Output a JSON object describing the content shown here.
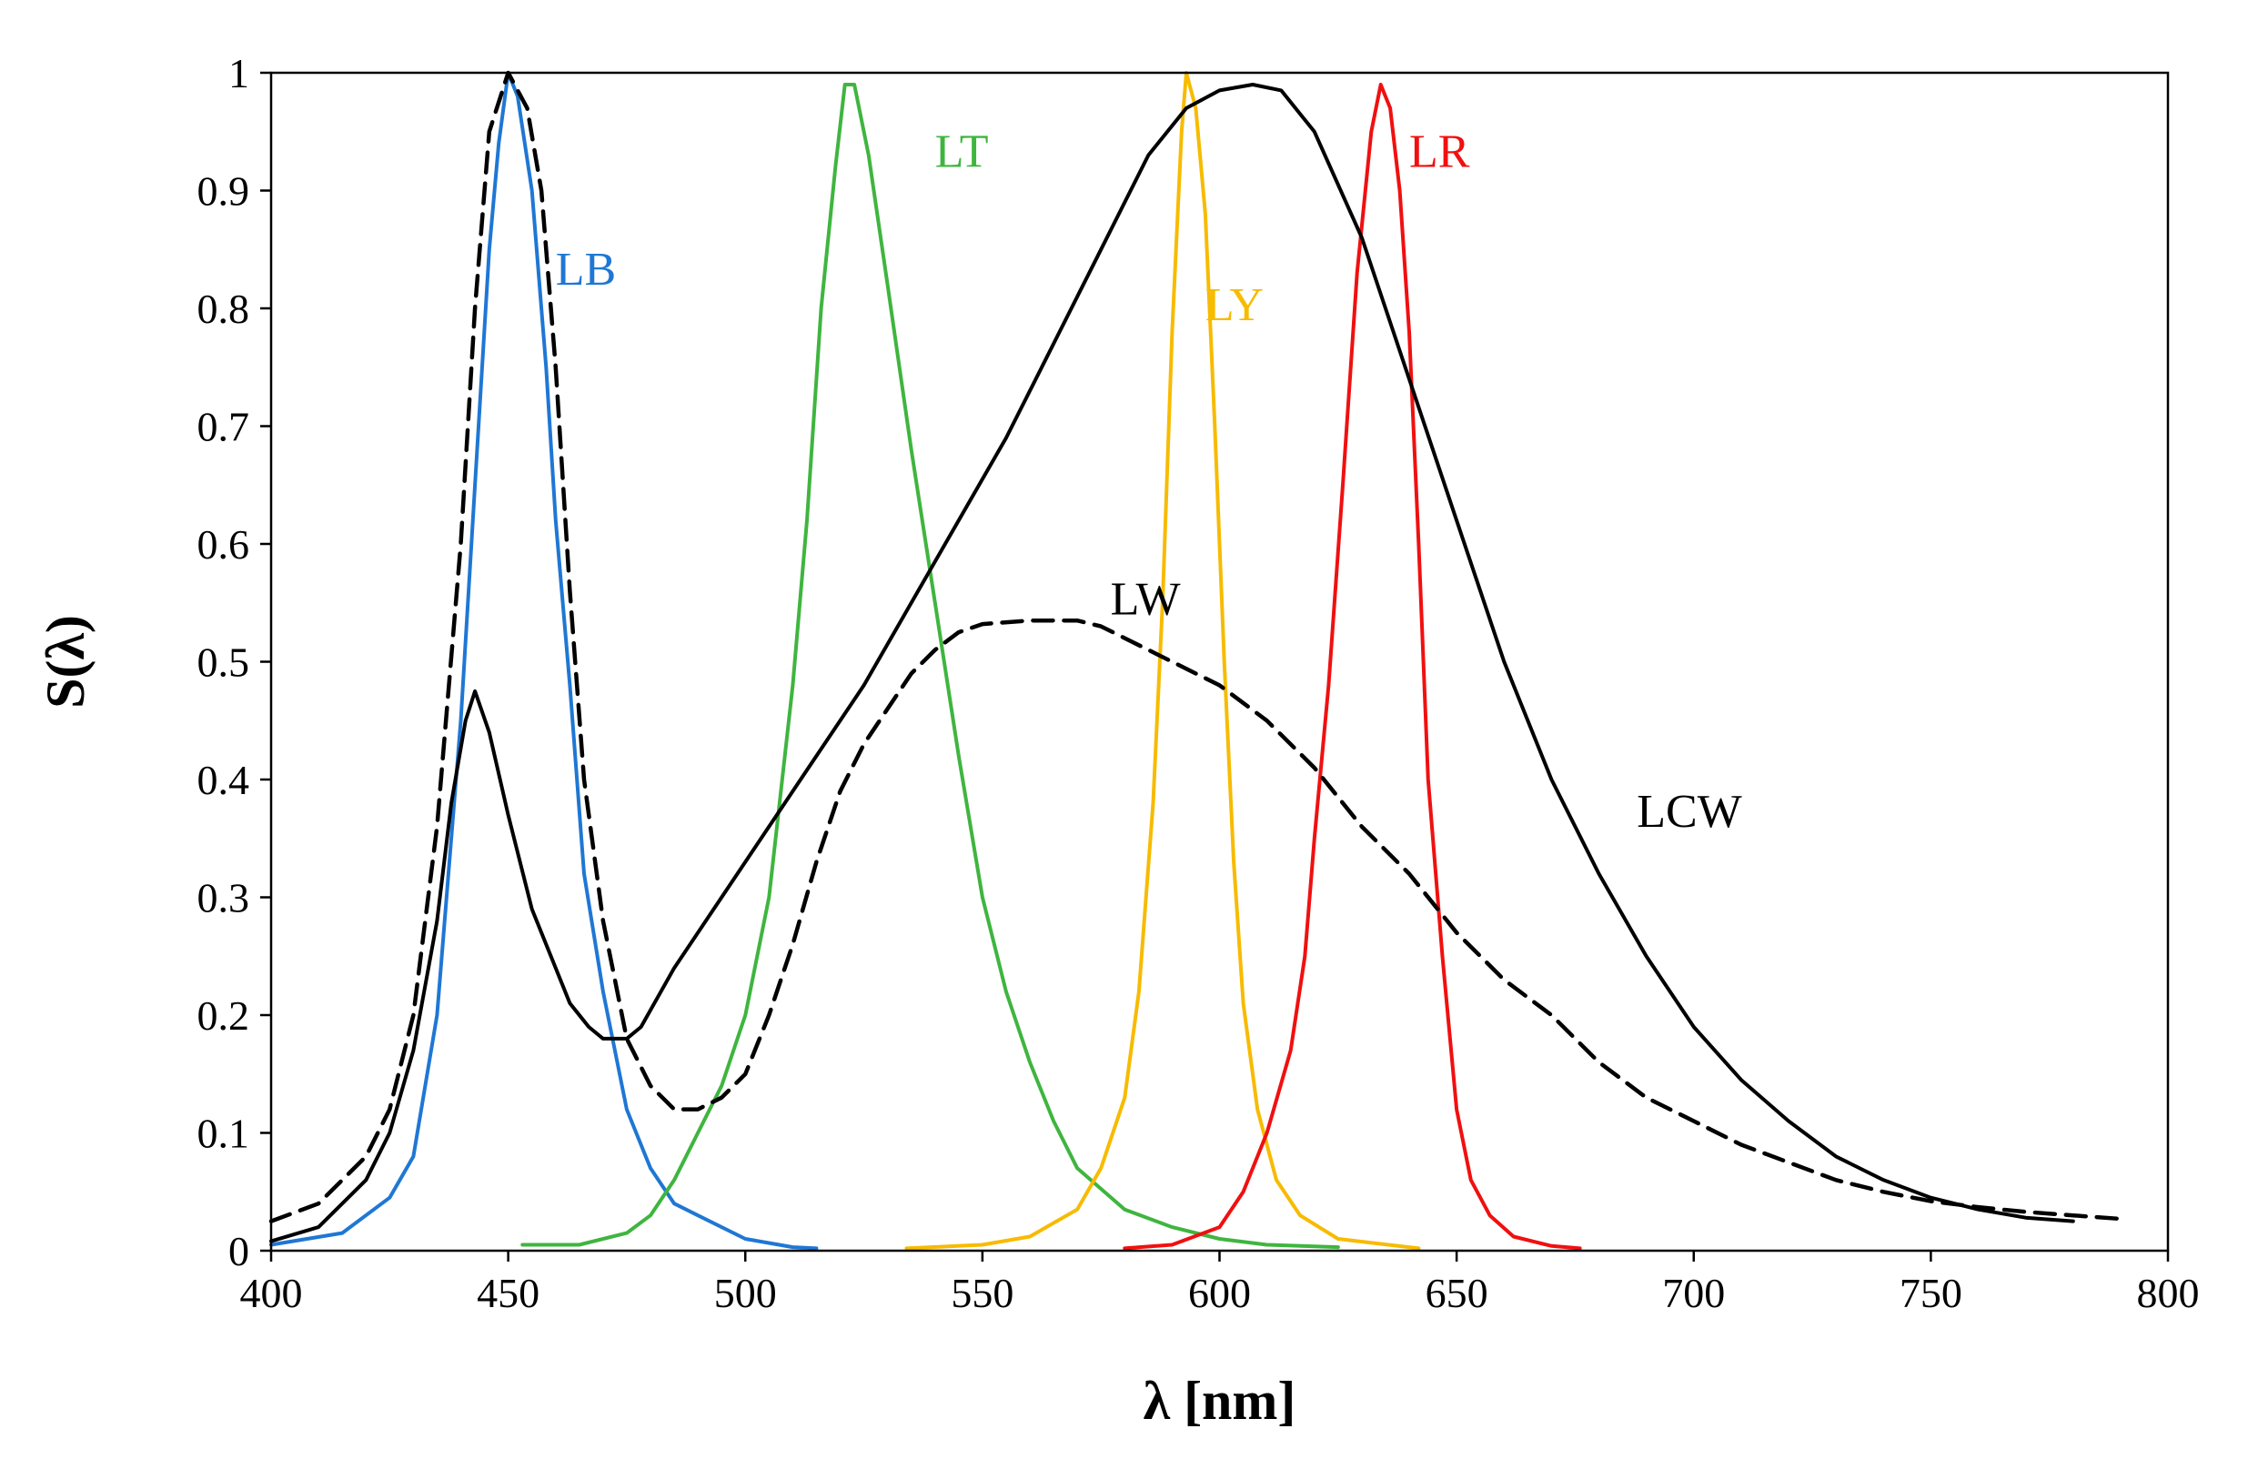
{
  "chart_data": {
    "type": "line",
    "title": "",
    "xlabel": "λ [nm]",
    "ylabel": "S(λ)",
    "xlim": [
      400,
      800
    ],
    "ylim": [
      0,
      1
    ],
    "xticks": [
      "400",
      "450",
      "500",
      "550",
      "600",
      "650",
      "700",
      "750",
      "800"
    ],
    "yticks": [
      "0",
      "0.1",
      "0.2",
      "0.3",
      "0.4",
      "0.5",
      "0.6",
      "0.7",
      "0.8",
      "0.9",
      "1"
    ],
    "grid": false,
    "series": [
      {
        "name": "LB",
        "label": "LB",
        "color": "#1f77d4",
        "dash": "solid",
        "label_at": [
          460,
          0.82
        ],
        "points": [
          [
            400,
            0.005
          ],
          [
            415,
            0.015
          ],
          [
            425,
            0.045
          ],
          [
            430,
            0.08
          ],
          [
            435,
            0.2
          ],
          [
            440,
            0.45
          ],
          [
            443,
            0.65
          ],
          [
            446,
            0.85
          ],
          [
            448,
            0.94
          ],
          [
            450,
            1.0
          ],
          [
            452,
            0.98
          ],
          [
            455,
            0.9
          ],
          [
            458,
            0.75
          ],
          [
            460,
            0.62
          ],
          [
            463,
            0.48
          ],
          [
            466,
            0.32
          ],
          [
            470,
            0.22
          ],
          [
            475,
            0.12
          ],
          [
            480,
            0.07
          ],
          [
            485,
            0.04
          ],
          [
            490,
            0.03
          ],
          [
            500,
            0.01
          ],
          [
            510,
            0.003
          ],
          [
            515,
            0.002
          ]
        ]
      },
      {
        "name": "LT",
        "label": "LT",
        "color": "#3fb53f",
        "dash": "solid",
        "label_at": [
          540,
          0.92
        ],
        "points": [
          [
            453,
            0.005
          ],
          [
            465,
            0.005
          ],
          [
            475,
            0.015
          ],
          [
            480,
            0.03
          ],
          [
            485,
            0.06
          ],
          [
            490,
            0.1
          ],
          [
            495,
            0.14
          ],
          [
            500,
            0.2
          ],
          [
            505,
            0.3
          ],
          [
            510,
            0.48
          ],
          [
            513,
            0.62
          ],
          [
            516,
            0.8
          ],
          [
            519,
            0.92
          ],
          [
            521,
            0.99
          ],
          [
            523,
            0.99
          ],
          [
            526,
            0.93
          ],
          [
            530,
            0.82
          ],
          [
            535,
            0.68
          ],
          [
            540,
            0.55
          ],
          [
            545,
            0.42
          ],
          [
            550,
            0.3
          ],
          [
            555,
            0.22
          ],
          [
            560,
            0.16
          ],
          [
            565,
            0.11
          ],
          [
            570,
            0.07
          ],
          [
            580,
            0.035
          ],
          [
            590,
            0.02
          ],
          [
            600,
            0.01
          ],
          [
            610,
            0.005
          ],
          [
            625,
            0.003
          ]
        ]
      },
      {
        "name": "LY",
        "label": "LY",
        "color": "#f7bb00",
        "dash": "solid",
        "label_at": [
          597,
          0.79
        ],
        "points": [
          [
            534,
            0.002
          ],
          [
            550,
            0.005
          ],
          [
            560,
            0.012
          ],
          [
            570,
            0.035
          ],
          [
            575,
            0.07
          ],
          [
            580,
            0.13
          ],
          [
            583,
            0.22
          ],
          [
            586,
            0.38
          ],
          [
            588,
            0.55
          ],
          [
            590,
            0.78
          ],
          [
            592,
            0.95
          ],
          [
            593,
            1.0
          ],
          [
            595,
            0.97
          ],
          [
            597,
            0.88
          ],
          [
            599,
            0.7
          ],
          [
            601,
            0.5
          ],
          [
            603,
            0.33
          ],
          [
            605,
            0.21
          ],
          [
            608,
            0.12
          ],
          [
            612,
            0.06
          ],
          [
            617,
            0.03
          ],
          [
            625,
            0.01
          ],
          [
            642,
            0.002
          ]
        ]
      },
      {
        "name": "LR",
        "label": "LR",
        "color": "#f01010",
        "dash": "solid",
        "label_at": [
          640,
          0.92
        ],
        "points": [
          [
            580,
            0.002
          ],
          [
            590,
            0.005
          ],
          [
            600,
            0.02
          ],
          [
            605,
            0.05
          ],
          [
            610,
            0.1
          ],
          [
            615,
            0.17
          ],
          [
            618,
            0.25
          ],
          [
            620,
            0.35
          ],
          [
            623,
            0.48
          ],
          [
            626,
            0.65
          ],
          [
            629,
            0.83
          ],
          [
            632,
            0.95
          ],
          [
            634,
            0.99
          ],
          [
            636,
            0.97
          ],
          [
            638,
            0.9
          ],
          [
            640,
            0.78
          ],
          [
            642,
            0.6
          ],
          [
            644,
            0.4
          ],
          [
            647,
            0.25
          ],
          [
            650,
            0.12
          ],
          [
            653,
            0.06
          ],
          [
            657,
            0.03
          ],
          [
            662,
            0.012
          ],
          [
            670,
            0.004
          ],
          [
            676,
            0.002
          ]
        ]
      },
      {
        "name": "LCW",
        "label": "LCW",
        "color": "#000000",
        "dash": "solid",
        "label_at": [
          688,
          0.36
        ],
        "points": [
          [
            400,
            0.008
          ],
          [
            410,
            0.02
          ],
          [
            420,
            0.06
          ],
          [
            425,
            0.1
          ],
          [
            430,
            0.17
          ],
          [
            435,
            0.28
          ],
          [
            438,
            0.38
          ],
          [
            441,
            0.45
          ],
          [
            443,
            0.475
          ],
          [
            446,
            0.44
          ],
          [
            450,
            0.37
          ],
          [
            455,
            0.29
          ],
          [
            460,
            0.24
          ],
          [
            463,
            0.21
          ],
          [
            467,
            0.19
          ],
          [
            470,
            0.18
          ],
          [
            475,
            0.18
          ],
          [
            478,
            0.19
          ],
          [
            485,
            0.24
          ],
          [
            495,
            0.3
          ],
          [
            505,
            0.36
          ],
          [
            515,
            0.42
          ],
          [
            525,
            0.48
          ],
          [
            535,
            0.55
          ],
          [
            545,
            0.62
          ],
          [
            555,
            0.69
          ],
          [
            565,
            0.77
          ],
          [
            575,
            0.85
          ],
          [
            585,
            0.93
          ],
          [
            593,
            0.97
          ],
          [
            600,
            0.985
          ],
          [
            607,
            0.99
          ],
          [
            613,
            0.985
          ],
          [
            620,
            0.95
          ],
          [
            630,
            0.86
          ],
          [
            640,
            0.74
          ],
          [
            650,
            0.62
          ],
          [
            660,
            0.5
          ],
          [
            670,
            0.4
          ],
          [
            680,
            0.32
          ],
          [
            690,
            0.25
          ],
          [
            700,
            0.19
          ],
          [
            710,
            0.145
          ],
          [
            720,
            0.11
          ],
          [
            730,
            0.08
          ],
          [
            740,
            0.06
          ],
          [
            750,
            0.045
          ],
          [
            760,
            0.035
          ],
          [
            770,
            0.028
          ],
          [
            780,
            0.025
          ]
        ]
      },
      {
        "name": "LW",
        "label": "LW",
        "color": "#000000",
        "dash": "dashed",
        "label_at": [
          577,
          0.54
        ],
        "points": [
          [
            400,
            0.025
          ],
          [
            410,
            0.04
          ],
          [
            420,
            0.08
          ],
          [
            425,
            0.12
          ],
          [
            430,
            0.2
          ],
          [
            435,
            0.36
          ],
          [
            440,
            0.6
          ],
          [
            443,
            0.8
          ],
          [
            446,
            0.95
          ],
          [
            450,
            1.0
          ],
          [
            454,
            0.97
          ],
          [
            457,
            0.9
          ],
          [
            460,
            0.75
          ],
          [
            463,
            0.56
          ],
          [
            466,
            0.4
          ],
          [
            470,
            0.28
          ],
          [
            475,
            0.18
          ],
          [
            480,
            0.14
          ],
          [
            485,
            0.12
          ],
          [
            490,
            0.12
          ],
          [
            495,
            0.13
          ],
          [
            500,
            0.15
          ],
          [
            505,
            0.2
          ],
          [
            510,
            0.26
          ],
          [
            515,
            0.33
          ],
          [
            520,
            0.39
          ],
          [
            525,
            0.43
          ],
          [
            530,
            0.46
          ],
          [
            535,
            0.49
          ],
          [
            540,
            0.51
          ],
          [
            545,
            0.525
          ],
          [
            550,
            0.532
          ],
          [
            560,
            0.535
          ],
          [
            570,
            0.535
          ],
          [
            575,
            0.53
          ],
          [
            580,
            0.52
          ],
          [
            590,
            0.5
          ],
          [
            600,
            0.48
          ],
          [
            610,
            0.45
          ],
          [
            620,
            0.41
          ],
          [
            630,
            0.36
          ],
          [
            640,
            0.32
          ],
          [
            650,
            0.27
          ],
          [
            660,
            0.23
          ],
          [
            670,
            0.2
          ],
          [
            680,
            0.16
          ],
          [
            690,
            0.13
          ],
          [
            700,
            0.11
          ],
          [
            710,
            0.09
          ],
          [
            720,
            0.075
          ],
          [
            730,
            0.06
          ],
          [
            740,
            0.05
          ],
          [
            750,
            0.042
          ],
          [
            760,
            0.037
          ],
          [
            770,
            0.033
          ],
          [
            780,
            0.03
          ],
          [
            790,
            0.027
          ]
        ]
      }
    ]
  }
}
